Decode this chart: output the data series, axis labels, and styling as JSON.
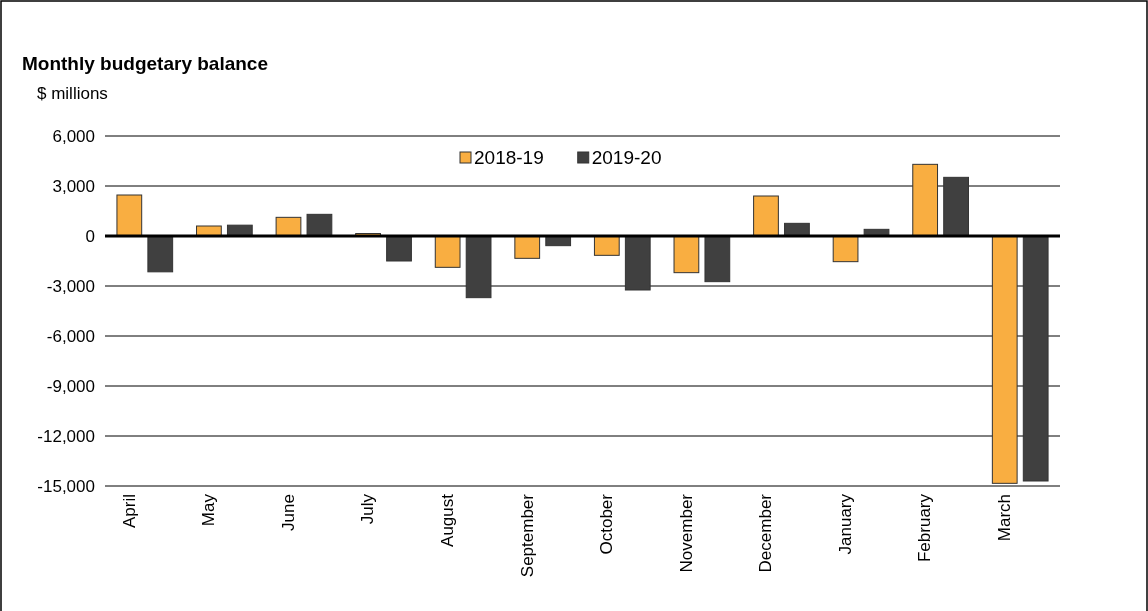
{
  "chart_data": {
    "type": "bar",
    "title": "Monthly budgetary balance",
    "ylabel": "$ millions",
    "categories": [
      "April",
      "May",
      "June",
      "July",
      "August",
      "September",
      "October",
      "November",
      "December",
      "January",
      "February",
      "March"
    ],
    "series": [
      {
        "name": "2018-19",
        "color": "#f9ae41",
        "values": [
          2460,
          600,
          1120,
          150,
          -1880,
          -1340,
          -1160,
          -2200,
          2400,
          -1540,
          4300,
          -14840
        ]
      },
      {
        "name": "2019-20",
        "color": "#404040",
        "values": [
          -2150,
          650,
          1300,
          -1500,
          -3700,
          -580,
          -3240,
          -2740,
          760,
          400,
          3520,
          -14700
        ]
      }
    ],
    "ylim": [
      -15000,
      6000
    ],
    "yticks": [
      {
        "value": -15000,
        "label": "-15,000"
      },
      {
        "value": -12000,
        "label": "-12,000"
      },
      {
        "value": -9000,
        "label": "-9,000"
      },
      {
        "value": -6000,
        "label": "-6,000"
      },
      {
        "value": -3000,
        "label": "-3,000"
      },
      0,
      {
        "value": 3000,
        "label": "3,000"
      },
      {
        "value": 6000,
        "label": "6,000"
      }
    ],
    "grid": "y",
    "legend": "top"
  }
}
